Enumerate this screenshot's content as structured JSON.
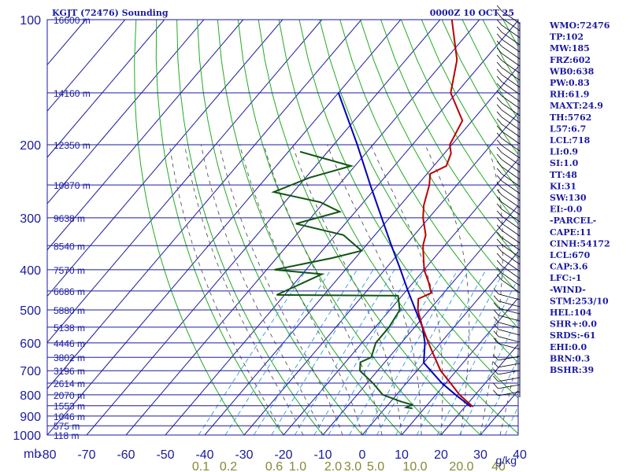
{
  "header": {
    "station_title": "KGJT (72476) Sounding",
    "timestamp": "0000Z 10 OCT 25"
  },
  "colors": {
    "isobar_grid": "#1a1aa0",
    "isotherm": "#1a1aa0",
    "dry_adiabat": "#22aa22",
    "moist_adiabat": "#555555",
    "mixing_ratio": "#3399dd",
    "temperature": "#bb0000",
    "dewpoint": "#115511",
    "parcel": "#0000bb",
    "axis_text": "#1a1aa0",
    "mixing_ratio_text": "#888833",
    "index_text": "#1a1aa0",
    "wind_barbs": "#000000"
  },
  "indices": [
    "WMO:72476",
    "TP:102",
    "MW:185",
    "FRZ:602",
    "WB0:638",
    "PW:0.83",
    "RH:61.9",
    "MAXT:24.9",
    "TH:5762",
    "L57:6.7",
    "LCL:718",
    "LI:0.9",
    "SI:1.0",
    "TT:48",
    "KI:31",
    "SW:130",
    "EI:-0.0",
    "-PARCEL-",
    "CAPE:11",
    "CINH:54172",
    "LCL:670",
    "CAP:3.6",
    "LFC:-1",
    "-WIND-",
    "STM:253/10",
    "HEL:104",
    "SHR+:0.0",
    "SRDS:-61",
    "EHI:0.0",
    "BRN:0.3",
    "BSHR:39"
  ],
  "chart_data": {
    "type": "line",
    "subtype": "skew-T log-P sounding",
    "title": "KGJT (72476) Sounding",
    "xlabel": "",
    "ylabel": "mb",
    "x_axis_unit_label": "mb",
    "x_ticks": [
      -80,
      -70,
      -60,
      -50,
      -40,
      -30,
      -20,
      -10,
      0,
      10,
      20,
      30,
      40
    ],
    "xlim": [
      -80,
      40
    ],
    "y_scale": "log",
    "ylim": [
      1000,
      100
    ],
    "pressure_ticks": [
      100,
      200,
      300,
      400,
      500,
      600,
      700,
      800,
      900,
      1000
    ],
    "height_labels": [
      {
        "p": 100,
        "text": "16600 m"
      },
      {
        "p": 150,
        "text": "14160 m"
      },
      {
        "p": 200,
        "text": "12350 m"
      },
      {
        "p": 250,
        "text": "10870 m"
      },
      {
        "p": 300,
        "text": "9638 m"
      },
      {
        "p": 350,
        "text": "8540 m"
      },
      {
        "p": 400,
        "text": "7570 m"
      },
      {
        "p": 450,
        "text": "6686 m"
      },
      {
        "p": 500,
        "text": "5880 m"
      },
      {
        "p": 550,
        "text": "5138 m"
      },
      {
        "p": 600,
        "text": "4446 m"
      },
      {
        "p": 650,
        "text": "3802 m"
      },
      {
        "p": 700,
        "text": "3196 m"
      },
      {
        "p": 750,
        "text": "2614 m"
      },
      {
        "p": 800,
        "text": "2070 m"
      },
      {
        "p": 850,
        "text": "1553 m"
      },
      {
        "p": 900,
        "text": "1046 m"
      },
      {
        "p": 950,
        "text": "575 m"
      },
      {
        "p": 1000,
        "text": "118 m"
      }
    ],
    "mixing_ratio_labels": [
      "0.1",
      "0.2",
      "0.6",
      "1.0",
      "2.0",
      "3.0",
      "5.0",
      "10.0",
      "20.0",
      "40"
    ],
    "mixing_ratio_unit": "g/kg",
    "series": [
      {
        "key": "temperature",
        "points": [
          {
            "p": 855,
            "t": 22.0
          },
          {
            "p": 800,
            "t": 16.0
          },
          {
            "p": 750,
            "t": 11.2
          },
          {
            "p": 700,
            "t": 6.0
          },
          {
            "p": 650,
            "t": 1.6
          },
          {
            "p": 600,
            "t": -3.1
          },
          {
            "p": 550,
            "t": -8.0
          },
          {
            "p": 500,
            "t": -12.9
          },
          {
            "p": 470,
            "t": -15.2
          },
          {
            "p": 455,
            "t": -13.2
          },
          {
            "p": 430,
            "t": -16.0
          },
          {
            "p": 400,
            "t": -20.0
          },
          {
            "p": 350,
            "t": -25.5
          },
          {
            "p": 330,
            "t": -27.1
          },
          {
            "p": 300,
            "t": -31.5
          },
          {
            "p": 280,
            "t": -34.0
          },
          {
            "p": 250,
            "t": -37.0
          },
          {
            "p": 235,
            "t": -39.2
          },
          {
            "p": 225,
            "t": -36.8
          },
          {
            "p": 210,
            "t": -38.3
          },
          {
            "p": 200,
            "t": -40.5
          },
          {
            "p": 175,
            "t": -42.5
          },
          {
            "p": 150,
            "t": -51.5
          },
          {
            "p": 125,
            "t": -57.0
          },
          {
            "p": 100,
            "t": -67.0
          }
        ]
      },
      {
        "key": "dewpoint",
        "points": [
          {
            "p": 863,
            "t": 7.0
          },
          {
            "p": 858,
            "t": 5.2
          },
          {
            "p": 845,
            "t": 6.0
          },
          {
            "p": 830,
            "t": 2.5
          },
          {
            "p": 800,
            "t": -3.5
          },
          {
            "p": 750,
            "t": -8.5
          },
          {
            "p": 700,
            "t": -14.5
          },
          {
            "p": 668,
            "t": -16.2
          },
          {
            "p": 650,
            "t": -14.5
          },
          {
            "p": 600,
            "t": -16.5
          },
          {
            "p": 550,
            "t": -16.5
          },
          {
            "p": 500,
            "t": -17.5
          },
          {
            "p": 462,
            "t": -21.0
          },
          {
            "p": 460,
            "t": -52.0
          },
          {
            "p": 410,
            "t": -45.0
          },
          {
            "p": 400,
            "t": -58.0
          },
          {
            "p": 375,
            "t": -46.0
          },
          {
            "p": 360,
            "t": -40.0
          },
          {
            "p": 330,
            "t": -48.0
          },
          {
            "p": 310,
            "t": -62.5
          },
          {
            "p": 290,
            "t": -54.0
          },
          {
            "p": 275,
            "t": -61.0
          },
          {
            "p": 260,
            "t": -75.0
          },
          {
            "p": 240,
            "t": -69.0
          },
          {
            "p": 225,
            "t": -61.0
          },
          {
            "p": 208,
            "t": -77.0
          }
        ]
      },
      {
        "key": "parcel",
        "points": [
          {
            "p": 855,
            "t": 21.5
          },
          {
            "p": 800,
            "t": 15.0
          },
          {
            "p": 750,
            "t": 9.0
          },
          {
            "p": 700,
            "t": 3.5
          },
          {
            "p": 670,
            "t": 0.0
          },
          {
            "p": 600,
            "t": -4.0
          },
          {
            "p": 550,
            "t": -8.0
          },
          {
            "p": 500,
            "t": -13.5
          },
          {
            "p": 450,
            "t": -19.5
          },
          {
            "p": 400,
            "t": -26.0
          },
          {
            "p": 350,
            "t": -33.5
          },
          {
            "p": 300,
            "t": -42.0
          },
          {
            "p": 250,
            "t": -52.0
          },
          {
            "p": 200,
            "t": -64.0
          },
          {
            "p": 150,
            "t": -80.0
          }
        ]
      }
    ],
    "grid": true,
    "legend": "none"
  }
}
